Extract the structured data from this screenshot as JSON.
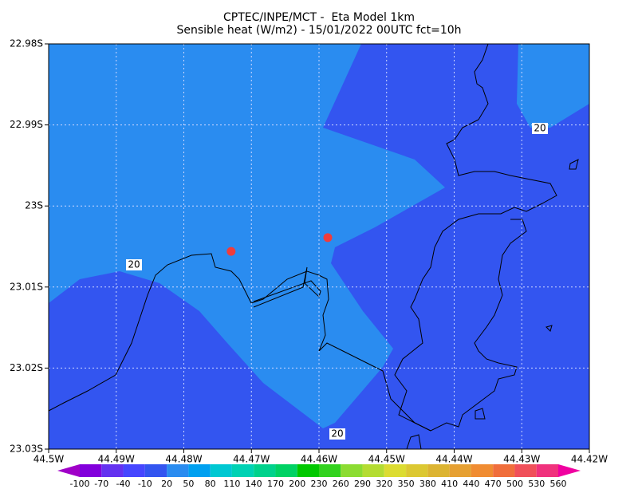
{
  "chart_data": {
    "type": "contour-map",
    "title": [
      "CPTEC/INPE/MCT -  Eta Model 1km",
      "Sensible heat (W/m2) - 15/01/2022 00UTC fct=10h"
    ],
    "xlim": [
      -44.5,
      -44.42
    ],
    "ylim": [
      -22.98,
      -23.03
    ],
    "xticks": [
      {
        "value": -44.5,
        "label": "44.5W"
      },
      {
        "value": -44.49,
        "label": "44.49W"
      },
      {
        "value": -44.48,
        "label": "44.48W"
      },
      {
        "value": -44.47,
        "label": "44.47W"
      },
      {
        "value": -44.46,
        "label": "44.46W"
      },
      {
        "value": -44.45,
        "label": "44.45W"
      },
      {
        "value": -44.44,
        "label": "44.44W"
      },
      {
        "value": -44.43,
        "label": "44.43W"
      },
      {
        "value": -44.42,
        "label": "44.42W"
      }
    ],
    "yticks": [
      {
        "value": -22.98,
        "label": "22.98S"
      },
      {
        "value": -22.99,
        "label": "22.99S"
      },
      {
        "value": -23.0,
        "label": "23S"
      },
      {
        "value": -23.01,
        "label": "23.01S"
      },
      {
        "value": -23.02,
        "label": "23.02S"
      },
      {
        "value": -23.03,
        "label": "23.03S"
      }
    ],
    "grid": true,
    "contour_labels": [
      "20",
      "20",
      "20"
    ],
    "points": {
      "color": "#f03c3c",
      "lon": [
        -44.473,
        -44.4587
      ],
      "lat": [
        -23.0056,
        -23.0039
      ]
    },
    "colorbar": {
      "levels": [
        -100,
        -70,
        -40,
        -10,
        20,
        50,
        80,
        110,
        140,
        170,
        200,
        230,
        260,
        290,
        320,
        350,
        380,
        410,
        440,
        470,
        500,
        530,
        560
      ],
      "colors": [
        "#a000c8",
        "#8200dc",
        "#6432f0",
        "#4646ff",
        "#3355f0",
        "#2a8cf0",
        "#00a0f0",
        "#00c8d2",
        "#00d2b4",
        "#00d28c",
        "#00d264",
        "#00c800",
        "#32d21e",
        "#8cdc32",
        "#b4dc32",
        "#dcdc32",
        "#dcc832",
        "#dcb432",
        "#e6a032",
        "#f08c32",
        "#f06e3c",
        "#f0505a",
        "#f0327d",
        "#f000a0"
      ]
    }
  }
}
